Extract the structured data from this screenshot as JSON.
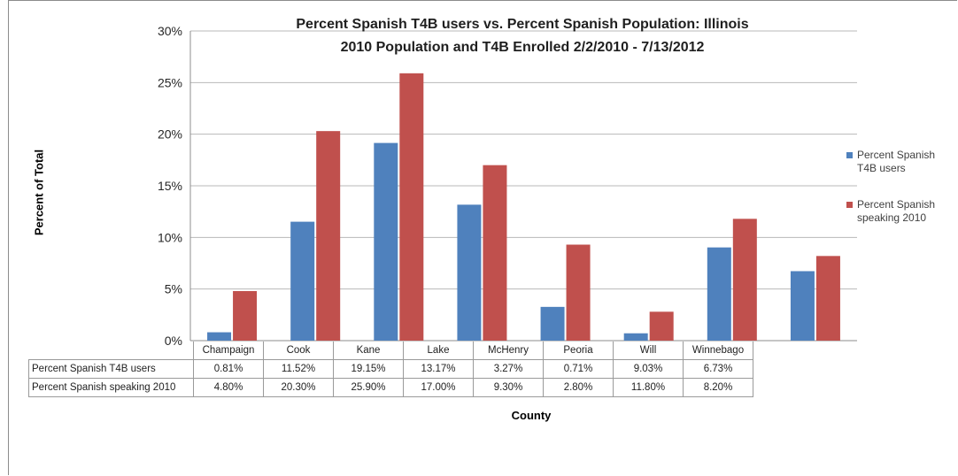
{
  "chart_data": {
    "type": "bar",
    "title": "Percent Spanish T4B users vs. Percent Spanish Population: Illinois",
    "subtitle": "2010 Population and T4B Enrolled  2/2/2010 - 7/13/2012",
    "xlabel": "County",
    "ylabel": "Percent of Total",
    "ylim": [
      0,
      30
    ],
    "yticks": [
      "0%",
      "5%",
      "10%",
      "15%",
      "20%",
      "25%",
      "30%"
    ],
    "categories": [
      "Champaign",
      "Cook",
      "Kane",
      "Lake",
      "McHenry",
      "Peoria",
      "Will",
      "Winnebago"
    ],
    "series": [
      {
        "name": "Percent Spanish T4B users",
        "legend_label": "Percent Spanish T4B users",
        "color": "#4f81bd",
        "values": [
          0.81,
          11.52,
          19.15,
          13.17,
          3.27,
          0.71,
          9.03,
          6.73
        ],
        "labels": [
          "0.81%",
          "11.52%",
          "19.15%",
          "13.17%",
          "3.27%",
          "0.71%",
          "9.03%",
          "6.73%"
        ]
      },
      {
        "name": "Percent Spanish speaking 2010",
        "legend_label": "Percent Spanish speaking 2010",
        "color": "#c0504d",
        "values": [
          4.8,
          20.3,
          25.9,
          17.0,
          9.3,
          2.8,
          11.8,
          8.2
        ],
        "labels": [
          "4.80%",
          "20.30%",
          "25.90%",
          "17.00%",
          "9.30%",
          "2.80%",
          "11.80%",
          "8.20%"
        ]
      }
    ],
    "grid": true,
    "legend_position": "right",
    "data_table": true
  }
}
